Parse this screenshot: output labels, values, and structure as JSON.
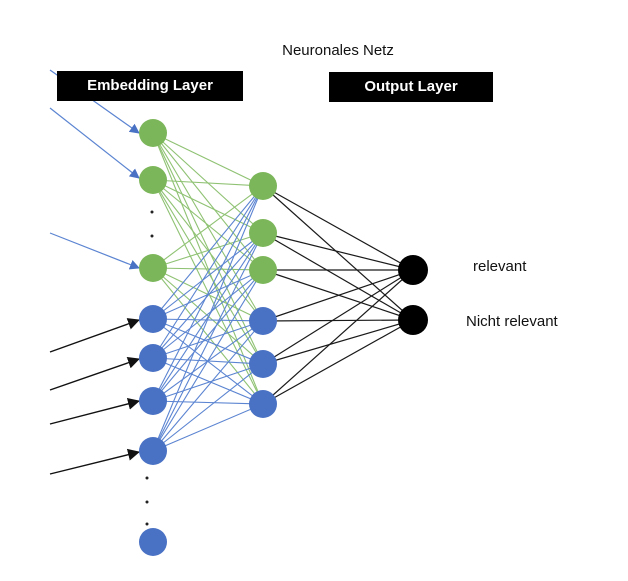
{
  "title": "Neuronales Netz",
  "layers": {
    "embedding_label": "Embedding Layer",
    "output_label": "Output Layer"
  },
  "outputs": [
    "relevant",
    "Nicht relevant"
  ],
  "colors": {
    "green_node": "#7cb65a",
    "blue_node": "#4a72c4",
    "black_node": "#000000",
    "green_edge": "#8fc273",
    "blue_edge": "#5b84d1",
    "black_edge": "#1a1a1a",
    "blue_input_arrow": "#5b84d1",
    "black_input_arrow": "#111111"
  },
  "icons": [
    "ellipsis-dots-icon"
  ]
}
